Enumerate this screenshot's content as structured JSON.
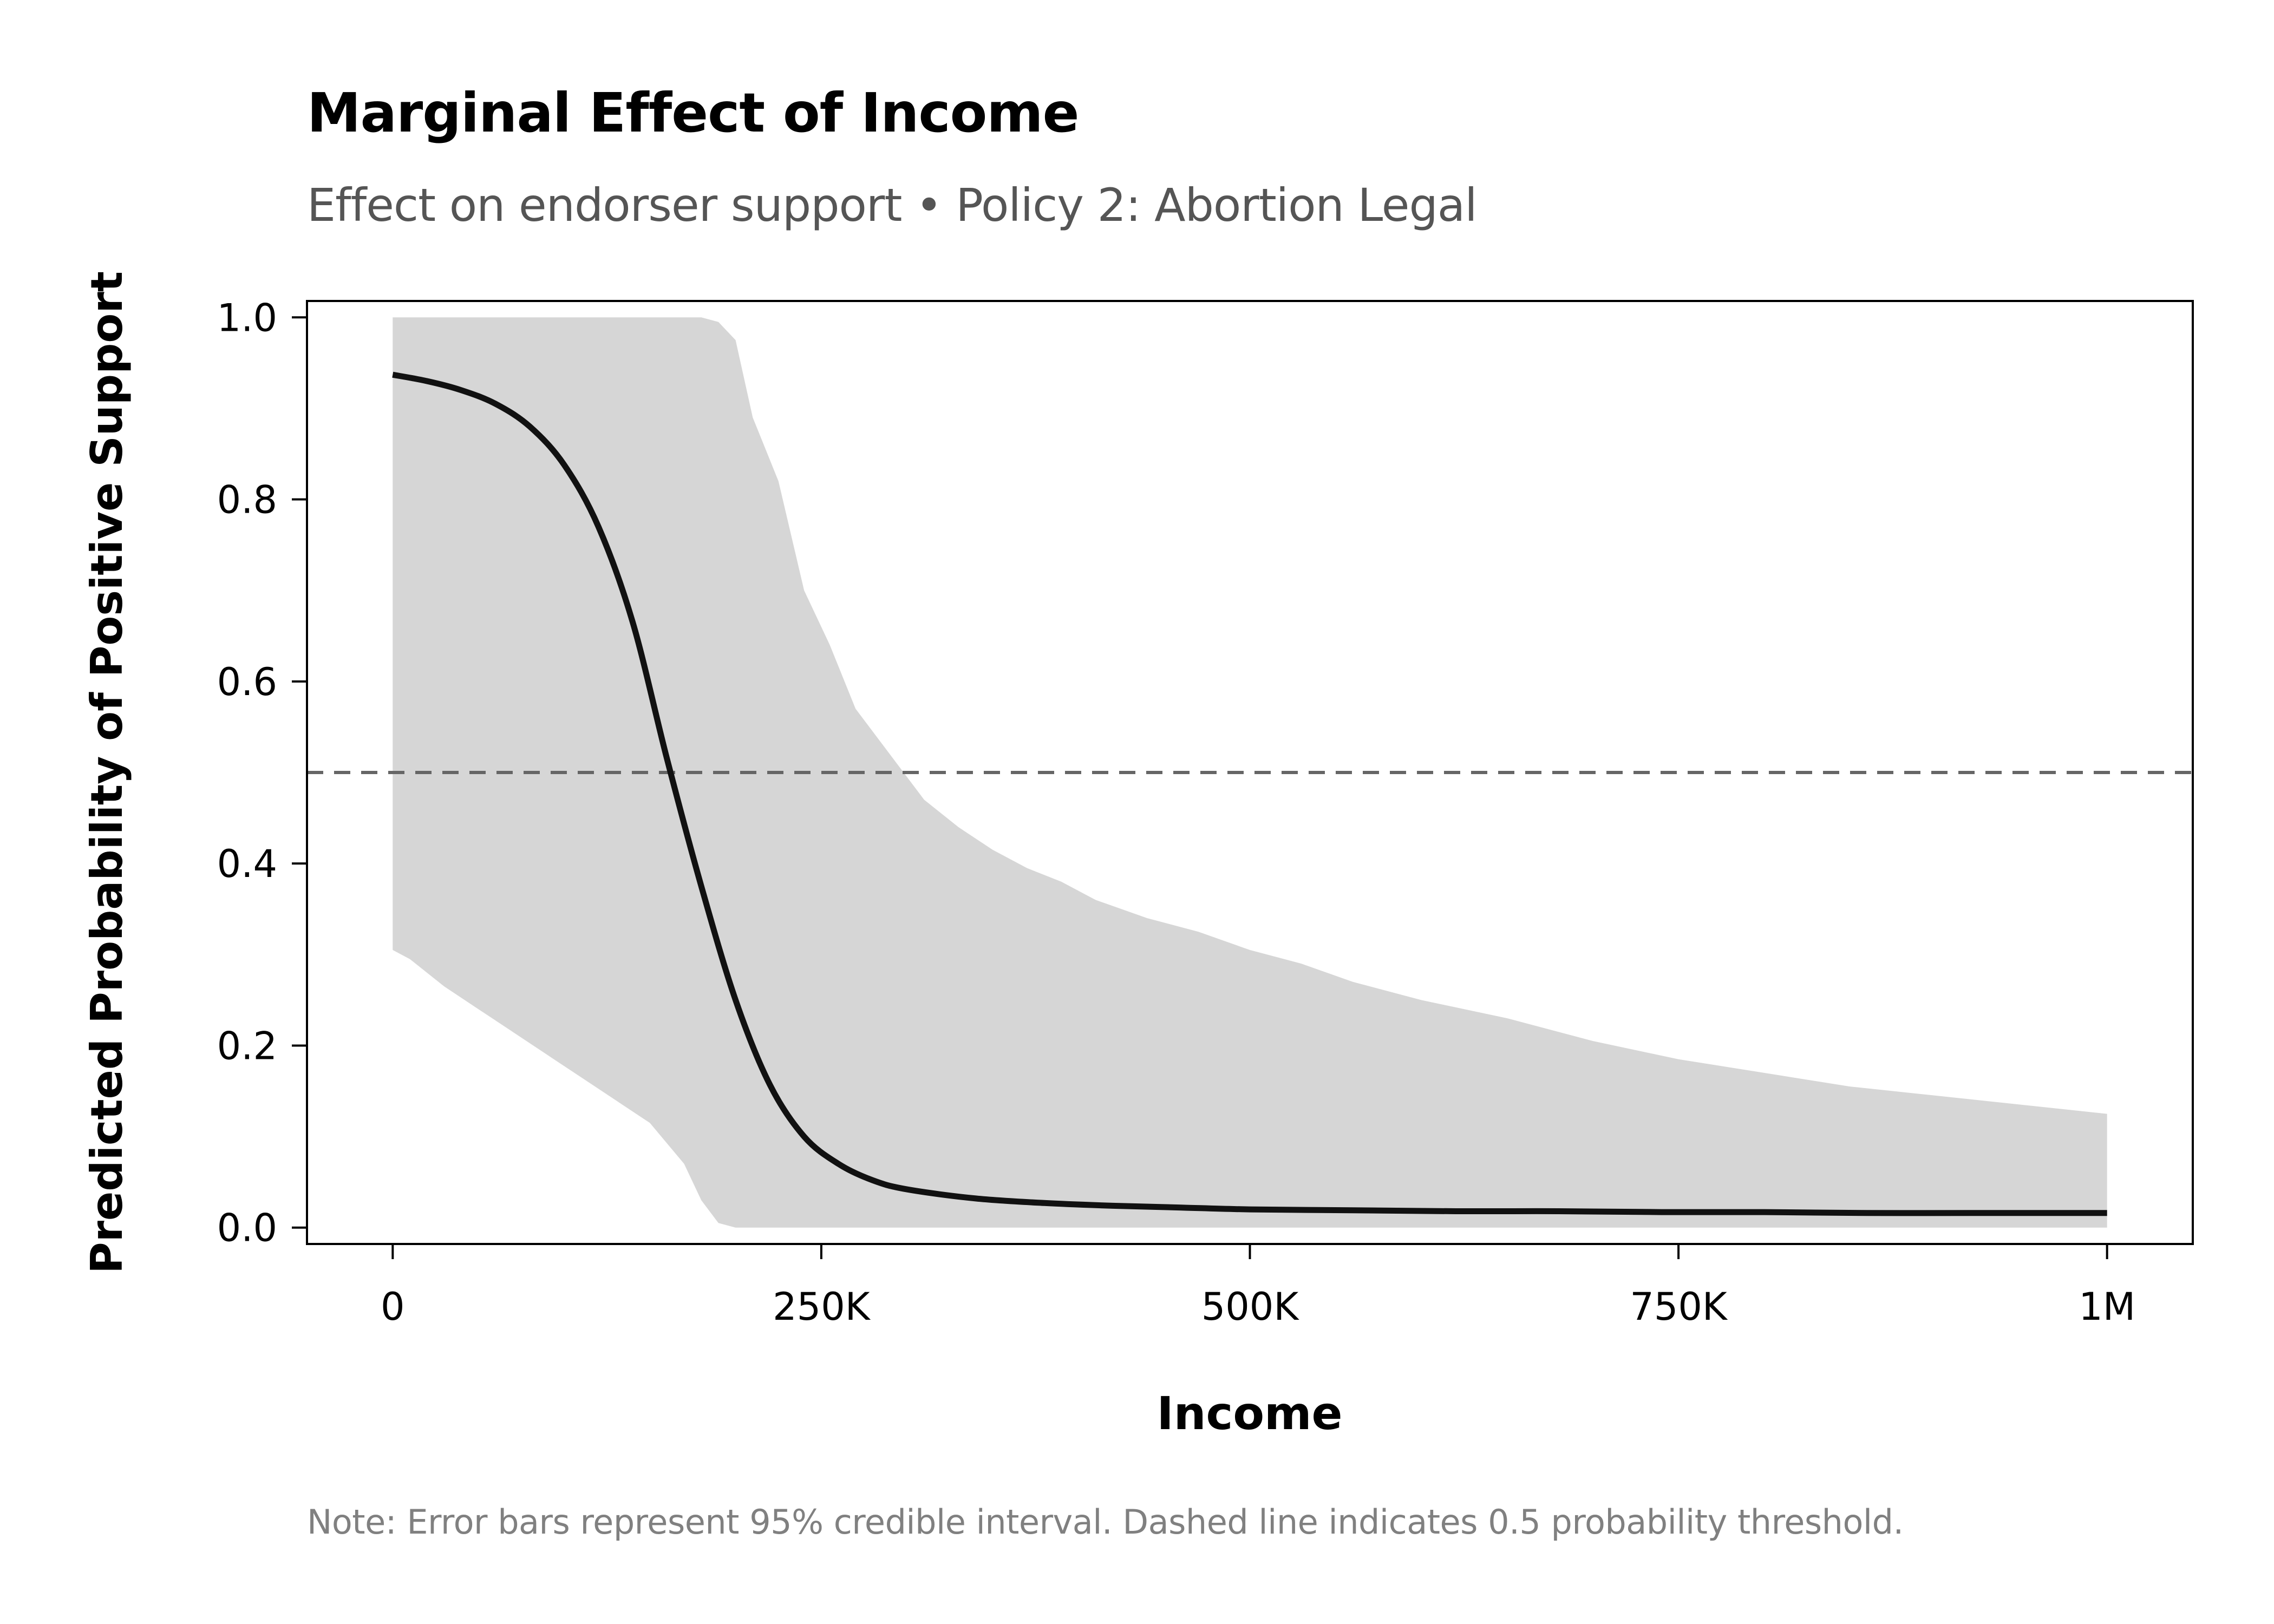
{
  "title": "Marginal Effect of Income",
  "subtitle": "Effect on endorser support • Policy 2: Abortion Legal",
  "note": "Note: Error bars represent 95% credible interval. Dashed line indicates 0.5 probability threshold.",
  "chart_data": {
    "type": "line",
    "title": "Marginal Effect of Income",
    "subtitle": "Effect on endorser support • Policy 2: Abortion Legal",
    "xlabel": "Income",
    "ylabel": "Predicted Probability of Positive Support",
    "xlim": [
      -50000,
      1050000
    ],
    "ylim": [
      -0.018,
      1.018
    ],
    "x_ticks": [
      0,
      250000,
      500000,
      750000,
      1000000
    ],
    "x_tick_labels": [
      "0",
      "250K",
      "500K",
      "750K",
      "1M"
    ],
    "y_ticks": [
      0,
      0.2,
      0.4,
      0.6,
      0.8,
      1.0
    ],
    "y_tick_labels": [
      "0.0",
      "0.2",
      "0.4",
      "0.6",
      "0.8",
      "1.0"
    ],
    "grid": false,
    "threshold": {
      "value": 0.5,
      "style": "dashed",
      "color": "#666666"
    },
    "colors": {
      "line": "#111111",
      "band": "#d6d6d6",
      "axis": "#000000"
    },
    "series": [
      {
        "x": [
          0,
          20000,
          40000,
          60000,
          80000,
          100000,
          120000,
          140000,
          160000,
          180000,
          200000,
          220000,
          240000,
          260000,
          280000,
          300000,
          340000,
          380000,
          420000,
          460000,
          500000,
          560000,
          620000,
          680000,
          740000,
          800000,
          860000,
          920000,
          1000000
        ],
        "y": [
          0.937,
          0.93,
          0.92,
          0.905,
          0.88,
          0.838,
          0.77,
          0.665,
          0.515,
          0.375,
          0.25,
          0.157,
          0.1,
          0.07,
          0.052,
          0.042,
          0.032,
          0.027,
          0.024,
          0.022,
          0.02,
          0.019,
          0.018,
          0.018,
          0.017,
          0.017,
          0.016,
          0.016,
          0.016
        ]
      }
    ],
    "band": {
      "x": [
        0,
        10000,
        30000,
        50000,
        70000,
        90000,
        110000,
        130000,
        150000,
        170000,
        180000,
        190000,
        200000,
        210000,
        225000,
        240000,
        255000,
        270000,
        290000,
        310000,
        330000,
        350000,
        370000,
        390000,
        410000,
        440000,
        470000,
        500000,
        530000,
        560000,
        600000,
        650000,
        700000,
        750000,
        800000,
        850000,
        900000,
        950000,
        1000000
      ],
      "upper": [
        1.0,
        1.0,
        1.0,
        1.0,
        1.0,
        1.0,
        1.0,
        1.0,
        1.0,
        1.0,
        1.0,
        0.995,
        0.975,
        0.89,
        0.82,
        0.7,
        0.64,
        0.57,
        0.52,
        0.47,
        0.44,
        0.415,
        0.395,
        0.38,
        0.36,
        0.34,
        0.325,
        0.305,
        0.29,
        0.27,
        0.25,
        0.23,
        0.205,
        0.185,
        0.17,
        0.155,
        0.145,
        0.135,
        0.125
      ],
      "lower": [
        0.305,
        0.295,
        0.265,
        0.24,
        0.215,
        0.19,
        0.165,
        0.14,
        0.115,
        0.07,
        0.03,
        0.005,
        0.0,
        0.0,
        0.0,
        0.0,
        0.0,
        0.0,
        0.0,
        0.0,
        0.0,
        0.0,
        0.0,
        0.0,
        0.0,
        0.0,
        0.0,
        0.0,
        0.0,
        0.0,
        0.0,
        0.0,
        0.0,
        0.0,
        0.0,
        0.0,
        0.0,
        0.0,
        0.0
      ]
    }
  }
}
